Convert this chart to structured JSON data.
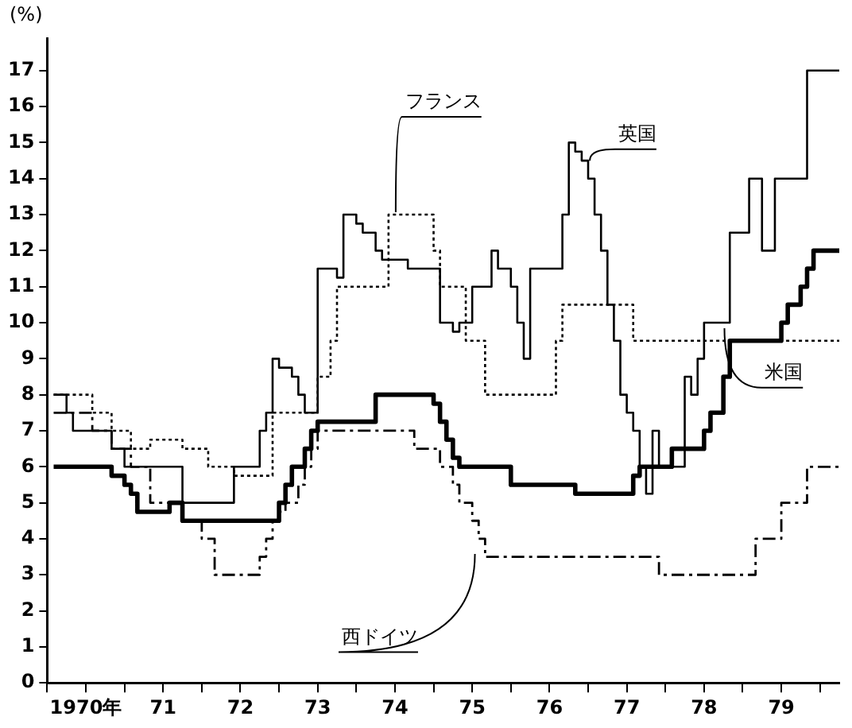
{
  "chart_data": {
    "type": "step",
    "ylabel": "(%)",
    "xlim": [
      "1970-01",
      "1980-04"
    ],
    "ylim": [
      0,
      17.9
    ],
    "xticks": [
      {
        "value": "1970-01",
        "label": null
      },
      {
        "value": "1970-07",
        "label": "1970年"
      },
      {
        "value": "1971-01",
        "label": null
      },
      {
        "value": "1971-07",
        "label": "71"
      },
      {
        "value": "1972-01",
        "label": null
      },
      {
        "value": "1972-07",
        "label": "72"
      },
      {
        "value": "1973-01",
        "label": null
      },
      {
        "value": "1973-07",
        "label": "73"
      },
      {
        "value": "1974-01",
        "label": null
      },
      {
        "value": "1974-07",
        "label": "74"
      },
      {
        "value": "1975-01",
        "label": null
      },
      {
        "value": "1975-07",
        "label": "75"
      },
      {
        "value": "1976-01",
        "label": null
      },
      {
        "value": "1976-07",
        "label": "76"
      },
      {
        "value": "1977-01",
        "label": null
      },
      {
        "value": "1977-07",
        "label": "77"
      },
      {
        "value": "1978-01",
        "label": null
      },
      {
        "value": "1978-07",
        "label": "78"
      },
      {
        "value": "1979-01",
        "label": null
      },
      {
        "value": "1979-07",
        "label": "79"
      },
      {
        "value": "1980-01",
        "label": null
      }
    ],
    "yticks": [
      0,
      1,
      2,
      3,
      4,
      5,
      6,
      7,
      8,
      9,
      10,
      11,
      12,
      13,
      14,
      15,
      16,
      17
    ],
    "grid": false,
    "legend": false,
    "series": [
      {
        "name": "英国",
        "color": "#000000",
        "line_style": "solid",
        "x": [
          "1970-02",
          "1970-04",
          "1970-05",
          "1970-11",
          "1971-01",
          "1971-10",
          "1972-06",
          "1972-10",
          "1972-11",
          "1972-12",
          "1973-01",
          "1973-03",
          "1973-04",
          "1973-05",
          "1973-07",
          "1973-10",
          "1973-11",
          "1974-01",
          "1974-02",
          "1974-04",
          "1974-05",
          "1974-09",
          "1975-02",
          "1975-04",
          "1975-05",
          "1975-07",
          "1975-10",
          "1975-11",
          "1976-01",
          "1976-02",
          "1976-03",
          "1976-04",
          "1976-09",
          "1976-10",
          "1976-11",
          "1976-12",
          "1977-01",
          "1977-02",
          "1977-03",
          "1977-04",
          "1977-05",
          "1977-06",
          "1977-07",
          "1977-08",
          "1977-09",
          "1977-10",
          "1977-11",
          "1977-12",
          "1978-04",
          "1978-05",
          "1978-06",
          "1978-07",
          "1978-11",
          "1979-02",
          "1979-04",
          "1979-06",
          "1979-11",
          "1980-04"
        ],
        "values": [
          8,
          7.5,
          7,
          6.5,
          6,
          5,
          6,
          7,
          7.5,
          9,
          8.75,
          8.5,
          8,
          7.5,
          11.5,
          11.25,
          13,
          12.75,
          12.5,
          12,
          11.75,
          11.5,
          10,
          9.75,
          10,
          11,
          12,
          11.5,
          11,
          10,
          9,
          11.5,
          13,
          15,
          14.75,
          14.5,
          14,
          13,
          12,
          10.5,
          9.5,
          8,
          7.5,
          7,
          6,
          5.25,
          7,
          6,
          8.5,
          8,
          9,
          10,
          12.5,
          14,
          12,
          14,
          17,
          17
        ]
      },
      {
        "name": "フランス",
        "color": "#000000",
        "line_style": "dotted",
        "x": [
          "1970-02",
          "1970-08",
          "1970-11",
          "1971-02",
          "1971-05",
          "1971-10",
          "1972-02",
          "1972-06",
          "1972-12",
          "1973-07",
          "1973-09",
          "1973-10",
          "1974-06",
          "1975-01",
          "1975-02",
          "1975-06",
          "1975-09",
          "1976-08",
          "1976-09",
          "1977-08",
          "1980-04"
        ],
        "values": [
          8,
          7.5,
          7,
          6.5,
          6.75,
          6.5,
          6,
          5.75,
          7.5,
          8.5,
          9.5,
          11,
          13,
          12,
          11,
          9.5,
          8,
          9.5,
          10.5,
          9.5,
          9.5
        ]
      },
      {
        "name": "米国",
        "color": "#000000",
        "line_style": "solid",
        "x": [
          "1970-02",
          "1970-11",
          "1971-01",
          "1971-02",
          "1971-03",
          "1971-08",
          "1971-10",
          "1973-01",
          "1973-02",
          "1973-03",
          "1973-05",
          "1973-06",
          "1973-07",
          "1974-04",
          "1975-01",
          "1975-02",
          "1975-03",
          "1975-04",
          "1975-05",
          "1976-01",
          "1976-11",
          "1977-08",
          "1977-09",
          "1978-02",
          "1978-07",
          "1978-08",
          "1978-10",
          "1978-11",
          "1979-07",
          "1979-08",
          "1979-10",
          "1979-11",
          "1979-12",
          "1980-04"
        ],
        "values": [
          6,
          5.75,
          5.5,
          5.25,
          4.75,
          5,
          4.5,
          5,
          5.5,
          6,
          6.5,
          7,
          7.25,
          8,
          7.75,
          7.25,
          6.75,
          6.25,
          6,
          5.5,
          5.25,
          5.75,
          6,
          6.5,
          7,
          7.5,
          8.5,
          9.5,
          10,
          10.5,
          11,
          11.5,
          12,
          12
        ]
      },
      {
        "name": "西ドイツ",
        "color": "#000000",
        "line_style": "dashed",
        "x": [
          "1970-02",
          "1970-08",
          "1970-11",
          "1971-02",
          "1971-05",
          "1971-10",
          "1972-01",
          "1972-03",
          "1972-10",
          "1972-11",
          "1972-12",
          "1973-01",
          "1973-02",
          "1973-04",
          "1973-05",
          "1973-06",
          "1973-07",
          "1974-10",
          "1975-02",
          "1975-04",
          "1975-05",
          "1975-07",
          "1975-08",
          "1975-09",
          "1977-12",
          "1979-03",
          "1979-07",
          "1979-11",
          "1980-04"
        ],
        "values": [
          7.5,
          7,
          6.5,
          6,
          5,
          4.5,
          4,
          3,
          3.5,
          4,
          4.5,
          4.75,
          5,
          5.5,
          6,
          6.5,
          7,
          6.5,
          6,
          5.5,
          5,
          4.5,
          4,
          3.5,
          3,
          4,
          5,
          6,
          6
        ]
      }
    ]
  }
}
